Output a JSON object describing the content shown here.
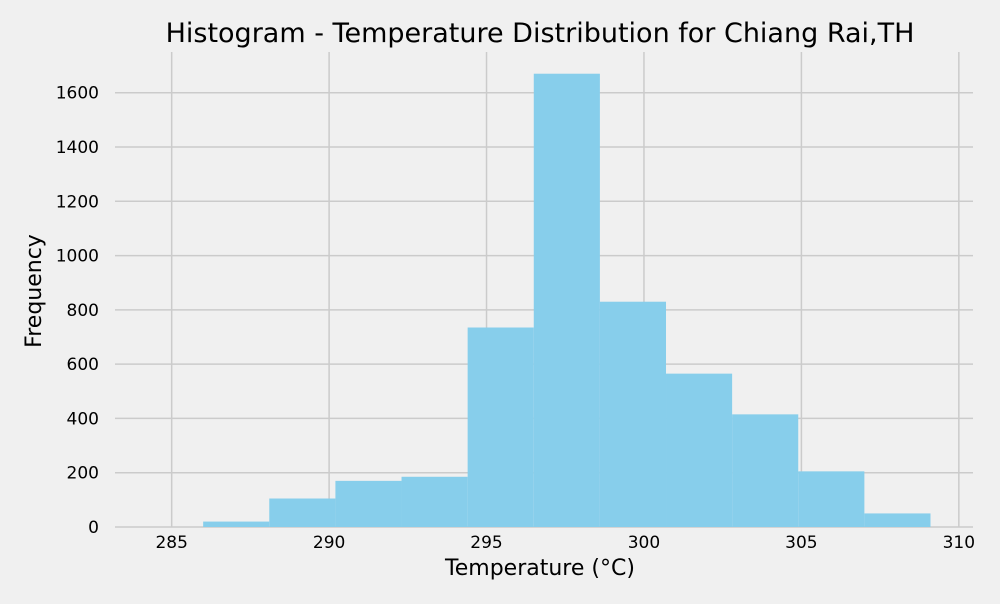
{
  "chart_data": {
    "type": "bar",
    "title": "Histogram - Temperature Distribution for Chiang Rai,TH",
    "xlabel": "Temperature (°C)",
    "ylabel": "Frequency",
    "xlim": [
      283.2,
      310.45
    ],
    "ylim": [
      0,
      1750
    ],
    "x_ticks": [
      285,
      290,
      295,
      300,
      305,
      310
    ],
    "y_ticks": [
      0,
      200,
      400,
      600,
      800,
      1000,
      1200,
      1400,
      1600
    ],
    "grid": true,
    "bins": [
      {
        "x0": 286.0,
        "x1": 288.1,
        "value": 20
      },
      {
        "x0": 288.1,
        "x1": 290.2,
        "value": 105
      },
      {
        "x0": 290.2,
        "x1": 292.3,
        "value": 170
      },
      {
        "x0": 292.3,
        "x1": 294.4,
        "value": 185
      },
      {
        "x0": 294.4,
        "x1": 296.5,
        "value": 735
      },
      {
        "x0": 296.5,
        "x1": 298.6,
        "value": 1670
      },
      {
        "x0": 298.6,
        "x1": 300.7,
        "value": 830
      },
      {
        "x0": 300.7,
        "x1": 302.8,
        "value": 565
      },
      {
        "x0": 302.8,
        "x1": 304.9,
        "value": 415
      },
      {
        "x0": 304.9,
        "x1": 307.0,
        "value": 205
      },
      {
        "x0": 307.0,
        "x1": 309.1,
        "value": 50
      }
    ],
    "colors": {
      "bar": "#87ceeb",
      "background": "#f0f0f0",
      "grid": "#cbcbcb"
    }
  }
}
